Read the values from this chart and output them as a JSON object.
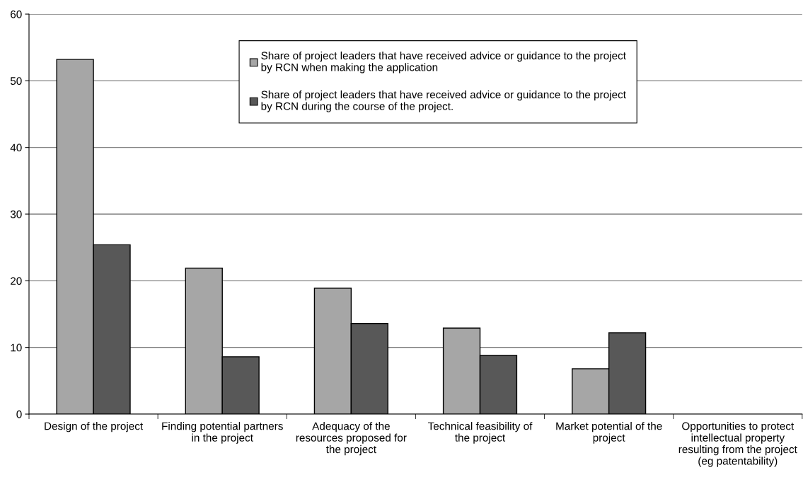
{
  "chart_data": {
    "type": "bar",
    "categories": [
      "Design of the project",
      "Finding potential partners\nin the project",
      "Adequacy of the\nresources proposed for\nthe project",
      "Technical feasibility of\nthe project",
      "Market potential of the\nproject",
      "Opportunities to protect\nintellectual property\nresulting from the project\n(eg patentability)"
    ],
    "series": [
      {
        "name": "Share of project leaders that have received advice or guidance to the project\nby RCN when making the application",
        "color": "#a6a6a6",
        "values": [
          53.2,
          21.9,
          18.9,
          12.9,
          6.8,
          null
        ]
      },
      {
        "name": "Share of project leaders that have received advice or guidance to the project\nby RCN during the course of the project.",
        "color": "#585858",
        "values": [
          25.4,
          8.6,
          13.6,
          8.8,
          12.2,
          null
        ]
      }
    ],
    "ylim": [
      0,
      60
    ],
    "yticks": [
      0,
      10,
      20,
      30,
      40,
      50,
      60
    ],
    "grid": "y",
    "legend": "top"
  }
}
